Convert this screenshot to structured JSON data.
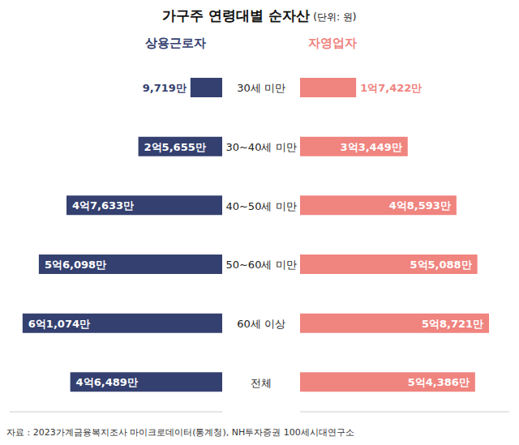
{
  "chart_data": {
    "type": "bar",
    "orientation": "horizontal",
    "title": "가구주 연령대별 순자산",
    "subtitle": "(단위: 원)",
    "categories": [
      "30세 미만",
      "30~40세 미만",
      "40~50세 미만",
      "50~60세 미만",
      "60세 이상",
      "전체"
    ],
    "series": [
      {
        "name": "상용근로자",
        "color": "#34406f",
        "values": [
          97190000,
          256550000,
          476330000,
          560980000,
          610740000,
          464890000
        ],
        "value_labels": [
          "9,719만",
          "2억5,655만",
          "4억7,633만",
          "5억6,098만",
          "6억1,074만",
          "4억6,489만"
        ]
      },
      {
        "name": "자영업자",
        "color": "#f0847f",
        "values": [
          174220000,
          334490000,
          485930000,
          550880000,
          587210000,
          543860000
        ],
        "value_labels": [
          "1억7,422만",
          "3억3,449만",
          "4억8,593만",
          "5억5,088만",
          "5억8,721만",
          "5억4,386만"
        ]
      }
    ],
    "xlim": [
      0,
      650000000
    ],
    "tick_labels": false,
    "data_labels": true,
    "annotations": [
      "자료 : 2023가계금융복지조사 마이크로데이터(통계청), NH투자증권 100세시대연구소"
    ]
  }
}
